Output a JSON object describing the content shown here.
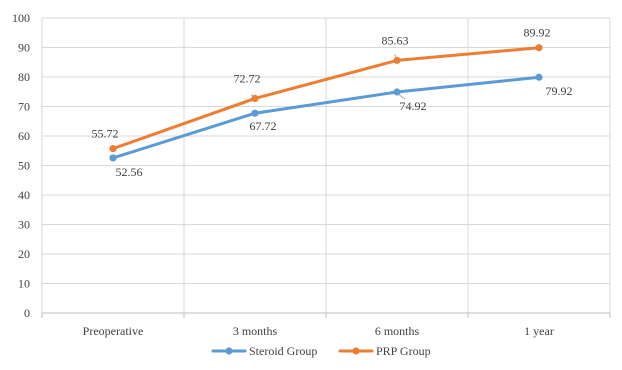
{
  "chart_data": {
    "type": "line",
    "categories": [
      "Preoperative",
      "3 months",
      "6 months",
      "1 year"
    ],
    "series": [
      {
        "name": "Steroid Group",
        "values": [
          52.56,
          67.72,
          74.92,
          79.92
        ],
        "labels": [
          "52.56",
          "67.72",
          "74.92",
          "79.92"
        ],
        "color": "#5B9BD5"
      },
      {
        "name": "PRP Group",
        "values": [
          55.72,
          72.72,
          85.63,
          89.92
        ],
        "labels": [
          "55.72",
          "72.72",
          "85.63",
          "89.92"
        ],
        "color": "#ED7D31"
      }
    ],
    "ylim": [
      0,
      100
    ],
    "yticks": [
      0,
      10,
      20,
      30,
      40,
      50,
      60,
      70,
      80,
      90,
      100
    ],
    "ytick_labels": [
      "0",
      "10",
      "20",
      "30",
      "40",
      "50",
      "60",
      "70",
      "80",
      "90",
      "100"
    ],
    "grid": true,
    "legend_position": "bottom",
    "title": "",
    "xlabel": "",
    "ylabel": ""
  }
}
